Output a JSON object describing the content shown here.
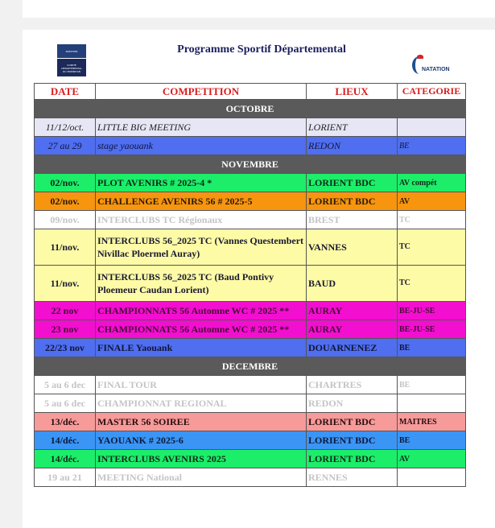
{
  "title": "Programme Sportif Départemental",
  "logos": {
    "left": "NATATION COMITÉ DÉPARTEMENTAL DU MORBIHAN",
    "right": "NATATION"
  },
  "headers": {
    "date": "DATE",
    "competition": "COMPETITION",
    "lieux": "LIEUX",
    "categorie": "CATEGORIE"
  },
  "sections": [
    {
      "month": "OCTOBRE",
      "rows": [
        {
          "date": "11/12/oct.",
          "competition": "LITTLE BIG MEETING",
          "lieux": "LORIENT",
          "categorie": "",
          "bg": "#e6e6f5",
          "color": "#222222",
          "italic": true
        },
        {
          "date": "27 au 29",
          "competition": "stage yaouank",
          "lieux": "REDON",
          "categorie": "BE",
          "bg": "#4f6ef0",
          "color": "#10163a",
          "italic": true
        }
      ]
    },
    {
      "month": "NOVEMBRE",
      "rows": [
        {
          "date": "02/nov.",
          "competition": "PLOT AVENIRS  # 2025-4  *",
          "lieux": "LORIENT BDC",
          "categorie": "AV compét",
          "bg": "#1cee6a",
          "color": "#0f2a1a"
        },
        {
          "date": "02/nov.",
          "competition": "CHALLENGE AVENIRS 56 # 2025-5",
          "lieux": "LORIENT BDC",
          "categorie": "AV",
          "bg": "#f7950e",
          "color": "#2a1a08"
        },
        {
          "date": "09/nov.",
          "competition": "INTERCLUBS TC Régionaux",
          "lieux": "BREST",
          "categorie": "TC",
          "bg": "#ffffff",
          "color": "#c4c4c4"
        },
        {
          "date": "11/nov.",
          "competition": "INTERCLUBS 56_2025 TC (Vannes Questembert Nivillac Ploermel Auray)",
          "lieux": "VANNES",
          "categorie": "TC",
          "bg": "#fdfba6",
          "color": "#1a1a30",
          "tall": true
        },
        {
          "date": "11/nov.",
          "competition": "INTERCLUBS 56_2025 TC (Baud Pontivy Ploemeur Caudan Lorient)",
          "lieux": "BAUD",
          "categorie": "TC",
          "bg": "#fdfba6",
          "color": "#1a1a30",
          "tall": true
        },
        {
          "date": "22 nov",
          "competition": " CHAMPIONNATS 56 Automne WC # 2025 **",
          "lieux": "AURAY",
          "categorie": "BE-JU-SE",
          "bg": "#f20fcf",
          "color": "#4a0a3a"
        },
        {
          "date": "23 nov",
          "competition": " CHAMPIONNATS 56  Automne WC # 2025 **",
          "lieux": "AURAY",
          "categorie": "BE-JU-SE",
          "bg": "#f20fcf",
          "color": "#4a0a3a"
        },
        {
          "date": "22/23 nov",
          "competition": "FINALE  Yaouank",
          "lieux": "DOUARNENEZ",
          "categorie": "BE",
          "bg": "#4f6ef0",
          "color": "#10163a"
        }
      ]
    },
    {
      "month": "DECEMBRE",
      "rows": [
        {
          "date": "5 au 6 dec",
          "competition": "FINAL TOUR",
          "lieux": "CHARTRES",
          "categorie": "BE",
          "bg": "#ffffff",
          "color": "#c4c4c4"
        },
        {
          "date": "5 au 6 dec",
          "competition": "CHAMPIONNAT REGIONAL",
          "lieux": "REDON",
          "categorie": "",
          "bg": "#ffffff",
          "color": "#c4c4c4"
        },
        {
          "date": "13/déc.",
          "competition": "MASTER 56 SOIREE",
          "lieux": "LORIENT BDC",
          "categorie": "MAITRES",
          "bg": "#f79a9a",
          "color": "#2a0e0e"
        },
        {
          "date": "14/déc.",
          "competition": "YAOUANK # 2025-6",
          "lieux": "LORIENT BDC",
          "categorie": "BE",
          "bg": "#3a95f5",
          "color": "#0e1a3a"
        },
        {
          "date": "14/déc.",
          "competition": "INTERCLUBS AVENIRS 2025",
          "lieux": "LORIENT BDC",
          "categorie": "AV",
          "bg": "#1cee6a",
          "color": "#0f2a1a"
        },
        {
          "date": "19 au 21",
          "competition": "MEETING National",
          "lieux": "RENNES",
          "categorie": "",
          "bg": "#ffffff",
          "color": "#c4c4c4"
        }
      ]
    }
  ]
}
